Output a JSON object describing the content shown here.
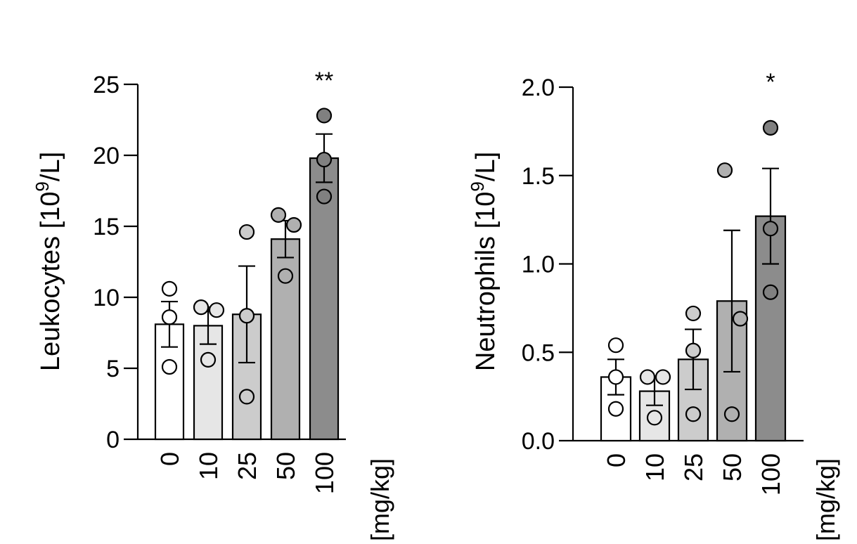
{
  "chart_data": [
    {
      "type": "bar",
      "ylabel_main": "Leukocytes [10",
      "ylabel_sup": "9",
      "ylabel_tail": "/L]",
      "xlabel": "[mg/kg]",
      "categories": [
        "0",
        "10",
        "25",
        "50",
        "100"
      ],
      "ylim": [
        0,
        25
      ],
      "yticks": [
        0,
        5,
        10,
        15,
        20,
        25
      ],
      "ytick_labels": [
        "0",
        "5",
        "10",
        "15",
        "20",
        "25"
      ],
      "means": [
        8.1,
        8.0,
        8.8,
        14.1,
        19.8
      ],
      "sem": [
        1.6,
        1.3,
        3.4,
        1.3,
        1.7
      ],
      "points": [
        [
          10.6,
          8.6,
          5.1
        ],
        [
          9.3,
          9.1,
          5.6
        ],
        [
          14.6,
          8.7,
          3.0
        ],
        [
          15.8,
          15.1,
          11.5
        ],
        [
          22.8,
          19.7,
          17.1
        ]
      ],
      "bar_colors": [
        "#ffffff",
        "#e6e6e6",
        "#cccccc",
        "#b0b0b0",
        "#8c8c8c"
      ],
      "point_colors": [
        "#ffffff",
        "#e6e6e6",
        "#cccccc",
        "#b0b0b0",
        "#808080"
      ],
      "significance": [
        "",
        "",
        "",
        "",
        "**"
      ],
      "grid": false
    },
    {
      "type": "bar",
      "ylabel_main": "Neutrophils [10",
      "ylabel_sup": "9",
      "ylabel_tail": "/L]",
      "xlabel": "[mg/kg]",
      "categories": [
        "0",
        "10",
        "25",
        "50",
        "100"
      ],
      "ylim": [
        0,
        2.0
      ],
      "yticks": [
        0,
        0.5,
        1.0,
        1.5,
        2.0
      ],
      "ytick_labels": [
        "0.0",
        "0.5",
        "1.0",
        "1.5",
        "2.0"
      ],
      "means": [
        0.36,
        0.28,
        0.46,
        0.79,
        1.27
      ],
      "sem": [
        0.1,
        0.08,
        0.17,
        0.4,
        0.27
      ],
      "points": [
        [
          0.54,
          0.36,
          0.18
        ],
        [
          0.36,
          0.36,
          0.13
        ],
        [
          0.72,
          0.51,
          0.15
        ],
        [
          1.53,
          0.69,
          0.15
        ],
        [
          1.77,
          1.2,
          0.84
        ]
      ],
      "bar_colors": [
        "#ffffff",
        "#e6e6e6",
        "#cccccc",
        "#b0b0b0",
        "#8c8c8c"
      ],
      "point_colors": [
        "#ffffff",
        "#e6e6e6",
        "#cccccc",
        "#b0b0b0",
        "#808080"
      ],
      "significance": [
        "",
        "",
        "",
        "",
        "*"
      ],
      "grid": false
    }
  ]
}
